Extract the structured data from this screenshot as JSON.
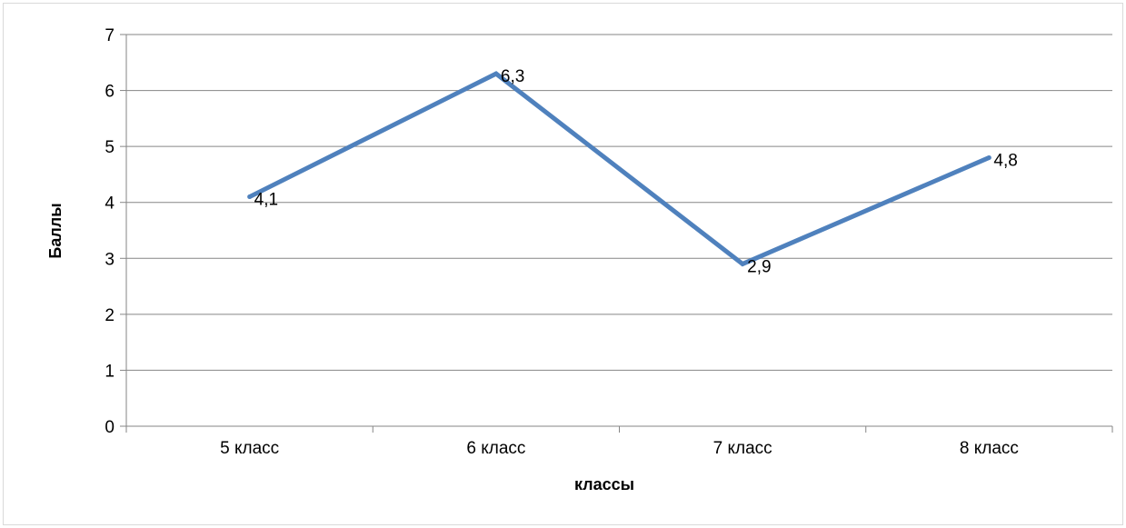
{
  "chart_data": {
    "type": "line",
    "title": "",
    "xlabel": "классы",
    "ylabel": "Баллы",
    "categories": [
      "5 класс",
      "6 класс",
      "7 класс",
      "8 класс"
    ],
    "series": [
      {
        "values": [
          4.1,
          6.3,
          2.9,
          4.8
        ]
      }
    ],
    "data_labels": [
      "4,1",
      "6,3",
      "2,9",
      "4,8"
    ],
    "ylim": [
      0,
      7
    ],
    "yticks": [
      "0",
      "1",
      "2",
      "3",
      "4",
      "5",
      "6",
      "7"
    ],
    "grid": true,
    "legend": "none",
    "colors": {
      "series": "#4f81bd",
      "grid": "#868686",
      "axis": "#868686"
    }
  }
}
